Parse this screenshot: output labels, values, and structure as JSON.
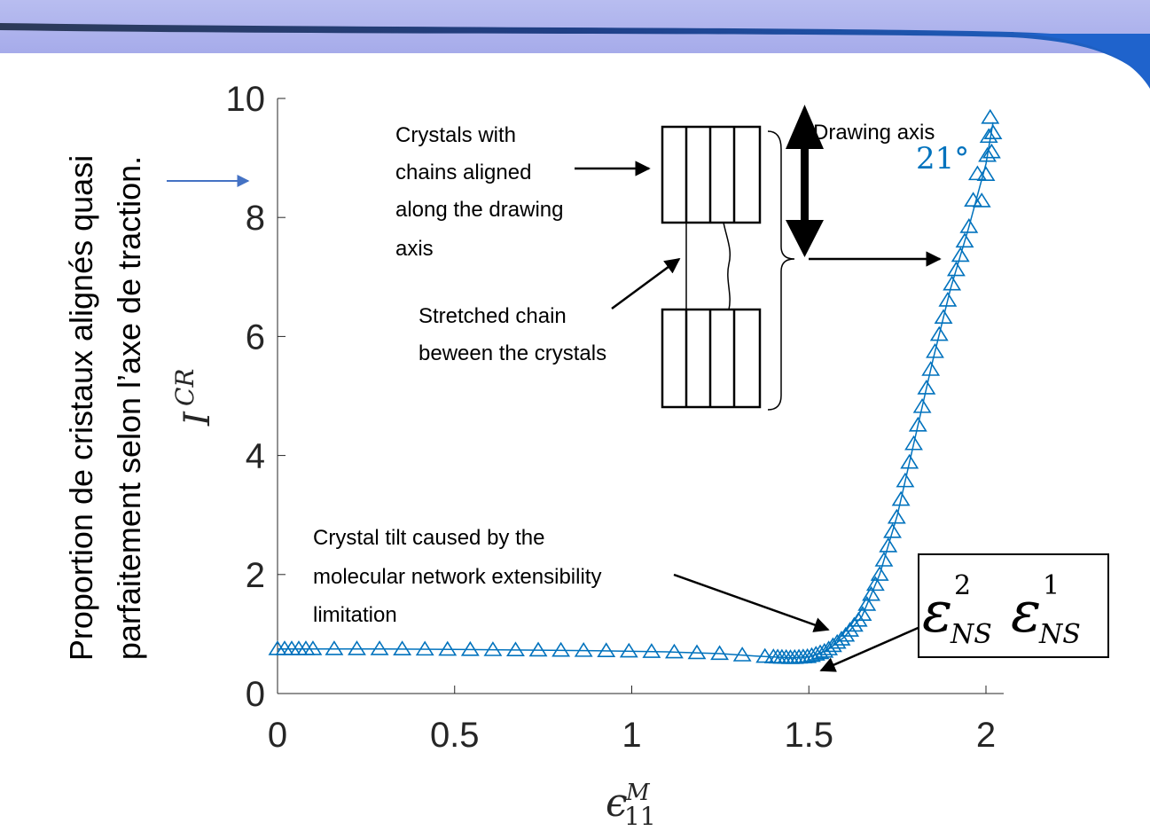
{
  "chart_data": {
    "type": "scatter",
    "xlabel_base": "ϵ",
    "xlabel_sub": "11",
    "xlabel_sup": "M",
    "ylabel_sym": "I",
    "ylabel_sup": "CR",
    "ylabel_desc_line1": "Proportion de cristaux alignés quasi",
    "ylabel_desc_line2": "parfaitement selon l’axe de traction.",
    "xlim": [
      0,
      2.05
    ],
    "ylim": [
      0,
      10
    ],
    "xticks": [
      0,
      0.5,
      1,
      1.5,
      2
    ],
    "xtick_labels": [
      "0",
      "0.5",
      "1",
      "1.5",
      "2"
    ],
    "yticks": [
      0,
      2,
      4,
      6,
      8,
      10
    ],
    "ytick_labels": [
      "0",
      "2",
      "4",
      "6",
      "8",
      "10"
    ],
    "grid": false,
    "series_color": "#0072BD",
    "marker": "triangle",
    "curve": [
      [
        0,
        0.75
      ],
      [
        0.1,
        0.75
      ],
      [
        0.3,
        0.75
      ],
      [
        0.5,
        0.74
      ],
      [
        0.7,
        0.73
      ],
      [
        0.9,
        0.72
      ],
      [
        1.1,
        0.7
      ],
      [
        1.25,
        0.67
      ],
      [
        1.35,
        0.63
      ],
      [
        1.45,
        0.6
      ],
      [
        1.5,
        0.62
      ],
      [
        1.55,
        0.72
      ],
      [
        1.6,
        0.95
      ],
      [
        1.65,
        1.3
      ],
      [
        1.7,
        2.0
      ],
      [
        1.75,
        3.0
      ],
      [
        1.8,
        4.3
      ],
      [
        1.85,
        5.6
      ],
      [
        1.9,
        6.8
      ],
      [
        1.95,
        7.8
      ],
      [
        2.0,
        8.9
      ],
      [
        2.02,
        9.6
      ]
    ],
    "annotations": {
      "drawing_axis": "Drawing axis",
      "angle": "21°",
      "crystals_line1": "Crystals with",
      "crystals_line2": "chains aligned",
      "crystals_line3": "along the drawing",
      "crystals_line4": "axis",
      "stretched_line1": "Stretched chain",
      "stretched_line2": "beween the crystals",
      "tilt_line1": "Crystal tilt caused by the",
      "tilt_line2": "molecular network extensibility",
      "tilt_line3": "limitation",
      "eps_sym": "ε",
      "eps_sup_a": "2",
      "eps_sub_a": "NS",
      "eps_sup_b": "1",
      "eps_sub_b": "NS"
    }
  }
}
